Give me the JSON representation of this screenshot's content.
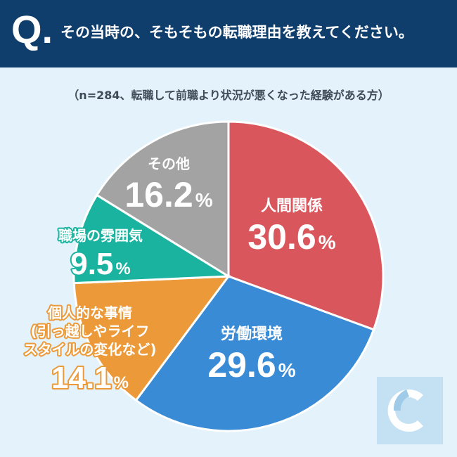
{
  "header": {
    "q_mark": "Q.",
    "question": "その当時の、そもそもの転職理由を教えてください。"
  },
  "subtitle": "（n=284、転職して前職より状況が悪くなった経験がある方）",
  "colors": {
    "header_bg": "#0f3d6c",
    "page_bg": "#e4f3fb",
    "relationships": "#d9575c",
    "work_environment": "#3a8bd6",
    "personal": "#ec9a39",
    "atmosphere": "#19b39f",
    "other": "#a3a3a3"
  },
  "logo_icon": "c-logo-icon",
  "chart_data": {
    "type": "pie",
    "start": "12 o'clock, clockwise",
    "slices": [
      {
        "key": "relationships",
        "label": "人間関係",
        "value": 30.6,
        "value_label": "30.6",
        "color": "#d9575c"
      },
      {
        "key": "work_environment",
        "label": "労働環境",
        "value": 29.6,
        "value_label": "29.6",
        "color": "#3a8bd6"
      },
      {
        "key": "personal",
        "label": "個人的な事情\n(引っ越しやライフ\nスタイルの変化など)",
        "value": 14.1,
        "value_label": "14.1",
        "color": "#ec9a39"
      },
      {
        "key": "atmosphere",
        "label": "職場の雰囲気",
        "value": 9.5,
        "value_label": "9.5",
        "color": "#19b39f"
      },
      {
        "key": "other",
        "label": "その他",
        "value": 16.2,
        "value_label": "16.2",
        "color": "#a3a3a3"
      }
    ],
    "unit": "%"
  }
}
